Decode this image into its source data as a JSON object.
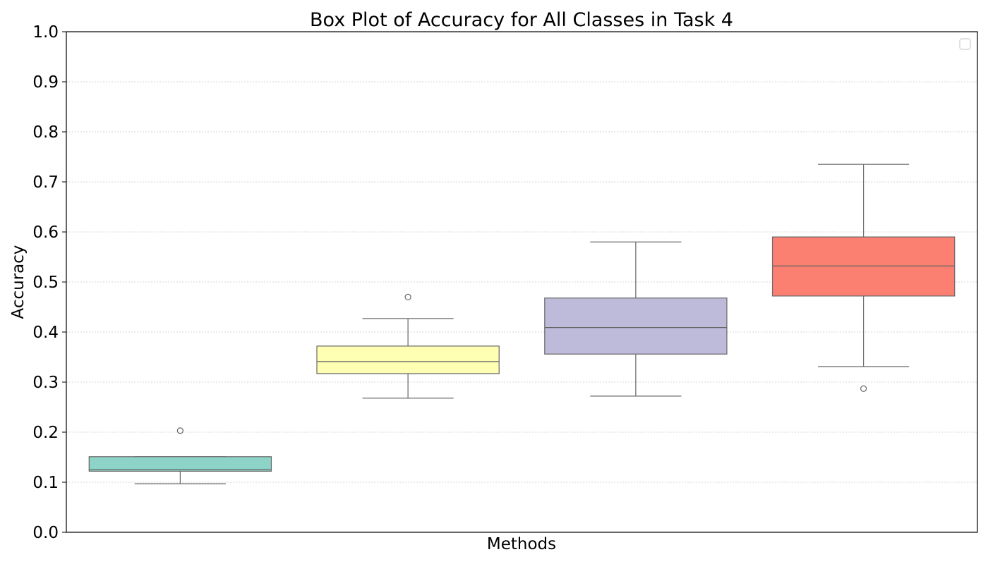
{
  "chart_data": {
    "type": "box",
    "title": "Box Plot of Accuracy for All Classes in Task 4",
    "xlabel": "Methods",
    "ylabel": "Accuracy",
    "ylim": [
      0.0,
      1.0
    ],
    "yticks": [
      "0.0",
      "0.1",
      "0.2",
      "0.3",
      "0.4",
      "0.5",
      "0.6",
      "0.7",
      "0.8",
      "0.9",
      "1.0"
    ],
    "grid": "horizontal dotted",
    "legend": "top-right, empty",
    "boxes": [
      {
        "color": "#8dd3c7",
        "whisker_low": 0.097,
        "q1": 0.122,
        "median": 0.125,
        "q3": 0.151,
        "whisker_high": 0.151,
        "outliers": [
          0.203
        ]
      },
      {
        "color": "#ffffb3",
        "whisker_low": 0.268,
        "q1": 0.317,
        "median": 0.341,
        "q3": 0.372,
        "whisker_high": 0.427,
        "outliers": [
          0.47
        ]
      },
      {
        "color": "#bebada",
        "whisker_low": 0.272,
        "q1": 0.356,
        "median": 0.409,
        "q3": 0.468,
        "whisker_high": 0.58,
        "outliers": []
      },
      {
        "color": "#fb8072",
        "whisker_low": 0.331,
        "q1": 0.472,
        "median": 0.532,
        "q3": 0.59,
        "whisker_high": 0.735,
        "outliers": [
          0.287
        ]
      }
    ]
  }
}
